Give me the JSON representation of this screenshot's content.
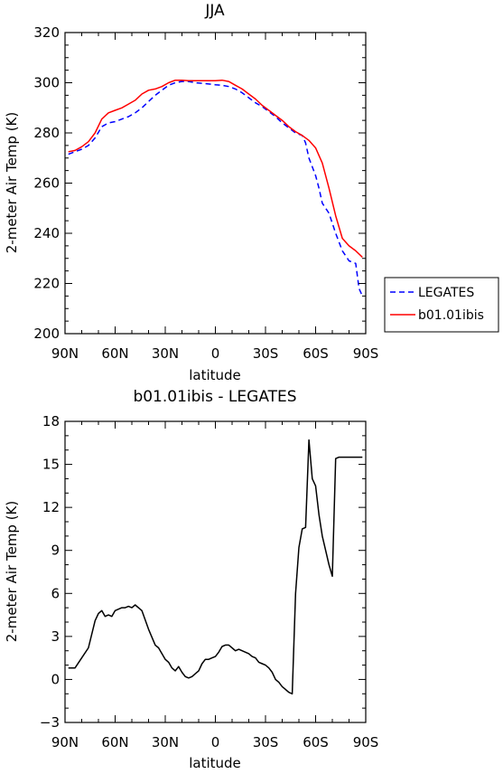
{
  "chart_data": [
    {
      "type": "line",
      "title": "JJA",
      "xlabel": "latitude",
      "ylabel": "2-meter Air Temp (K)",
      "xlim": [
        90,
        -90
      ],
      "ylim": [
        200,
        320
      ],
      "x_ticks": [
        90,
        60,
        30,
        0,
        -30,
        -60,
        -90
      ],
      "x_tick_labels": [
        "90N",
        "60N",
        "30N",
        "0",
        "30S",
        "60S",
        "90S"
      ],
      "y_ticks": [
        200,
        220,
        240,
        260,
        280,
        300,
        320
      ],
      "y_tick_labels": [
        "200",
        "220",
        "240",
        "260",
        "280",
        "300",
        "320"
      ],
      "legend_placement": "right",
      "series": [
        {
          "name": "LEGATES",
          "color": "#0000ff",
          "dash": "dashed",
          "x": [
            88,
            84,
            80,
            76,
            72,
            68,
            64,
            60,
            56,
            52,
            48,
            44,
            40,
            36,
            32,
            28,
            24,
            20,
            16,
            12,
            8,
            4,
            0,
            -4,
            -8,
            -12,
            -16,
            -20,
            -24,
            -28,
            -32,
            -36,
            -40,
            -44,
            -48,
            -52,
            -54,
            -56,
            -60,
            -62,
            -64,
            -68,
            -72,
            -76,
            -80,
            -84,
            -86,
            -88
          ],
          "y": [
            271.5,
            272.5,
            273.5,
            275,
            278,
            282.5,
            284,
            284.5,
            285.5,
            286.5,
            288,
            290,
            292.5,
            295,
            297,
            299,
            300,
            300.5,
            300.5,
            300,
            299.8,
            299.5,
            299.2,
            299,
            298.5,
            297.5,
            296,
            294,
            292,
            290.5,
            288.5,
            286.5,
            284,
            282,
            280,
            279,
            276,
            270,
            263,
            258,
            252,
            248,
            240,
            233,
            229,
            228,
            218,
            215
          ]
        },
        {
          "name": "b01.01ibis",
          "color": "#ff0000",
          "dash": "solid",
          "x": [
            88,
            84,
            80,
            76,
            72,
            68,
            64,
            60,
            56,
            52,
            48,
            44,
            40,
            36,
            32,
            28,
            24,
            20,
            16,
            12,
            8,
            4,
            0,
            -4,
            -8,
            -12,
            -16,
            -20,
            -24,
            -28,
            -32,
            -36,
            -40,
            -44,
            -48,
            -52,
            -56,
            -60,
            -64,
            -68,
            -72,
            -76,
            -80,
            -84,
            -88
          ],
          "y": [
            272.5,
            273,
            274.5,
            276.5,
            280,
            285.5,
            288,
            289,
            290,
            291.5,
            293,
            295.5,
            297,
            297.5,
            298.5,
            300,
            301,
            301,
            300.8,
            300.8,
            300.8,
            300.8,
            300.8,
            301,
            300.5,
            299,
            297.5,
            295.5,
            293.5,
            291,
            289,
            287,
            285,
            282.5,
            280.5,
            279,
            277,
            274,
            268,
            258,
            247,
            238,
            235,
            233,
            230.5
          ]
        }
      ]
    },
    {
      "type": "line",
      "title": "b01.01ibis - LEGATES",
      "xlabel": "latitude",
      "ylabel": "2-meter Air Temp (K)",
      "xlim": [
        90,
        -90
      ],
      "ylim": [
        -3,
        18
      ],
      "x_ticks": [
        90,
        60,
        30,
        0,
        -30,
        -60,
        -90
      ],
      "x_tick_labels": [
        "90N",
        "60N",
        "30N",
        "0",
        "30S",
        "60S",
        "90S"
      ],
      "y_ticks": [
        -3,
        0,
        3,
        6,
        9,
        12,
        15,
        18
      ],
      "y_tick_labels": [
        "−3",
        "0",
        "3",
        "6",
        "9",
        "12",
        "15",
        "18"
      ],
      "series": [
        {
          "name": "",
          "color": "#000000",
          "dash": "solid",
          "x": [
            88,
            84,
            80,
            76,
            72,
            70,
            68,
            66,
            64,
            62,
            60,
            56,
            54,
            52,
            50,
            48,
            44,
            40,
            36,
            34,
            32,
            30,
            28,
            26,
            24,
            22,
            20,
            18,
            16,
            14,
            12,
            10,
            8,
            6,
            4,
            2,
            0,
            -2,
            -4,
            -6,
            -8,
            -10,
            -12,
            -14,
            -16,
            -18,
            -20,
            -22,
            -24,
            -26,
            -28,
            -30,
            -32,
            -34,
            -36,
            -38,
            -40,
            -42,
            -44,
            -46,
            -48,
            -50,
            -52,
            -54,
            -56,
            -58,
            -60,
            -62,
            -64,
            -66,
            -68,
            -70,
            -72,
            -74,
            -76,
            -78,
            -80,
            -82,
            -84,
            -86,
            -88
          ],
          "y": [
            0.8,
            0.8,
            1.5,
            2.2,
            4.1,
            4.6,
            4.8,
            4.4,
            4.5,
            4.4,
            4.8,
            5.0,
            5.0,
            5.1,
            5.0,
            5.2,
            4.8,
            3.5,
            2.4,
            2.2,
            1.8,
            1.4,
            1.2,
            0.8,
            0.6,
            0.9,
            0.5,
            0.2,
            0.1,
            0.2,
            0.4,
            0.6,
            1.1,
            1.4,
            1.4,
            1.5,
            1.6,
            1.9,
            2.3,
            2.4,
            2.4,
            2.2,
            2.0,
            2.1,
            2.0,
            1.9,
            1.8,
            1.6,
            1.5,
            1.2,
            1.1,
            1.0,
            0.8,
            0.5,
            0.0,
            -0.2,
            -0.5,
            -0.7,
            -0.9,
            -1.0,
            6.0,
            9.2,
            10.5,
            10.6,
            16.7,
            14.0,
            13.5,
            11.5,
            10.0,
            9.0,
            8.0,
            7.2,
            15.4,
            15.5,
            15.5,
            15.5,
            15.5,
            15.5,
            15.5,
            15.5,
            15.5
          ]
        }
      ]
    }
  ]
}
